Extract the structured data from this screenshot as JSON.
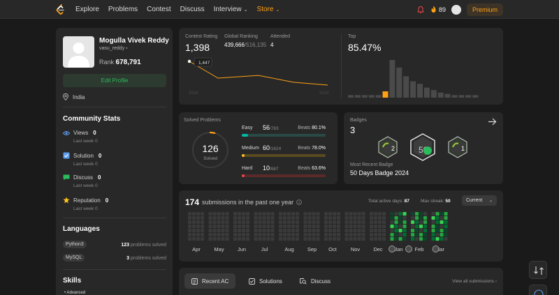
{
  "nav": {
    "items": [
      "Explore",
      "Problems",
      "Contest",
      "Discuss",
      "Interview",
      "Store"
    ],
    "streak": "89",
    "premium": "Premium"
  },
  "profile": {
    "name": "Mogulla Vivek Reddy",
    "username": "vasu_reddy",
    "rank_label": "Rank",
    "rank": "678,791",
    "edit": "Edit Profile",
    "location": "India"
  },
  "community": {
    "title": "Community Stats",
    "stats": [
      {
        "label": "Views",
        "value": "0",
        "sub": "Last week",
        "sub_value": "0",
        "color": "#5d9cec"
      },
      {
        "label": "Solution",
        "value": "0",
        "sub": "Last week",
        "sub_value": "0",
        "color": "#5d9cec"
      },
      {
        "label": "Discuss",
        "value": "0",
        "sub": "Last week",
        "sub_value": "0",
        "color": "#2cbb5d"
      },
      {
        "label": "Reputation",
        "value": "0",
        "sub": "Last week",
        "sub_value": "0",
        "color": "#ffc01e"
      }
    ]
  },
  "languages": {
    "title": "Languages",
    "items": [
      {
        "name": "Python3",
        "count": "123",
        "suffix": "problems solved"
      },
      {
        "name": "MySQL",
        "count": "3",
        "suffix": "problems solved"
      }
    ]
  },
  "skills": {
    "title": "Skills",
    "advanced": "• Advanced"
  },
  "contest": {
    "rating_label": "Contest Rating",
    "rating": "1,398",
    "global_label": "Global Ranking",
    "global": "439,666",
    "global_total": "/516,135",
    "attended_label": "Attended",
    "attended": "4",
    "tooltip": "1,447",
    "x_start": "2024",
    "x_end": "2024",
    "top_label": "Top",
    "top": "85.47%",
    "rating_history": [
      1447,
      1432,
      1418,
      1404,
      1398
    ],
    "histogram": [
      2,
      2,
      2,
      2,
      2,
      5,
      30,
      24,
      17,
      13,
      11,
      8,
      6,
      4,
      3,
      2,
      2,
      2,
      2
    ],
    "histogram_highlight": 5
  },
  "solved": {
    "title": "Solved Problems",
    "count": "126",
    "label": "Solved",
    "difficulties": [
      {
        "name": "Easy",
        "solved": "56",
        "total": "/783",
        "beats_label": "Beats",
        "beats": "80.1%",
        "pct": 0.072,
        "color": "#00b8a3",
        "track": "#2a4a45"
      },
      {
        "name": "Medium",
        "solved": "60",
        "total": "/1624",
        "beats_label": "Beats",
        "beats": "78.0%",
        "pct": 0.037,
        "color": "#ffc01e",
        "track": "#5a4a20"
      },
      {
        "name": "Hard",
        "solved": "10",
        "total": "/687",
        "beats_label": "Beats",
        "beats": "63.6%",
        "pct": 0.015,
        "color": "#ef4743",
        "track": "#5a2a2a"
      }
    ]
  },
  "badges": {
    "title": "Badges",
    "count": "3",
    "recent_label": "Most Recent Badge",
    "recent": "50 Days Badge 2024",
    "icons": [
      "2",
      "50",
      "1"
    ]
  },
  "submissions": {
    "count": "174",
    "text": "submissions in the past one year",
    "active_label": "Total active days:",
    "active": "87",
    "streak_label": "Max streak:",
    "streak": "50",
    "dropdown": "Current",
    "months": [
      "Apr",
      "May",
      "Jun",
      "Jul",
      "Aug",
      "Sep",
      "Oct",
      "Nov",
      "Dec",
      "Jan",
      "Feb",
      "Mar"
    ]
  },
  "recent": {
    "tabs": [
      "Recent AC",
      "Solutions",
      "Discuss"
    ],
    "view_all": "View all submissions"
  }
}
